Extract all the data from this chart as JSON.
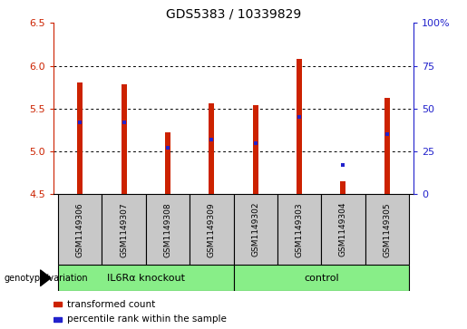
{
  "title": "GDS5383 / 10339829",
  "samples": [
    "GSM1149306",
    "GSM1149307",
    "GSM1149308",
    "GSM1149309",
    "GSM1149302",
    "GSM1149303",
    "GSM1149304",
    "GSM1149305"
  ],
  "bar_bottoms": [
    4.5,
    4.5,
    4.5,
    4.5,
    4.5,
    4.5,
    4.5,
    4.5
  ],
  "bar_tops": [
    5.8,
    5.78,
    5.22,
    5.56,
    5.54,
    6.08,
    4.65,
    5.63
  ],
  "percentile_ranks": [
    42,
    42,
    27,
    32,
    30,
    45,
    17,
    35
  ],
  "bar_color": "#cc2200",
  "percentile_color": "#2222cc",
  "ylim_left": [
    4.5,
    6.5
  ],
  "ylim_right": [
    0,
    100
  ],
  "yticks_left": [
    4.5,
    5.0,
    5.5,
    6.0,
    6.5
  ],
  "yticks_right": [
    0,
    25,
    50,
    75,
    100
  ],
  "grid_lines": [
    5.0,
    5.5,
    6.0
  ],
  "groups": [
    {
      "label": "IL6Rα knockout",
      "start": 0,
      "end": 4,
      "color": "#88ee88"
    },
    {
      "label": "control",
      "start": 4,
      "end": 8,
      "color": "#88ee88"
    }
  ],
  "legend": [
    {
      "label": "transformed count",
      "color": "#cc2200"
    },
    {
      "label": "percentile rank within the sample",
      "color": "#2222cc"
    }
  ],
  "bar_width": 0.12,
  "tick_label_color_left": "#cc2200",
  "tick_label_color_right": "#2222cc",
  "sample_box_color": "#c8c8c8",
  "title_fontsize": 10
}
